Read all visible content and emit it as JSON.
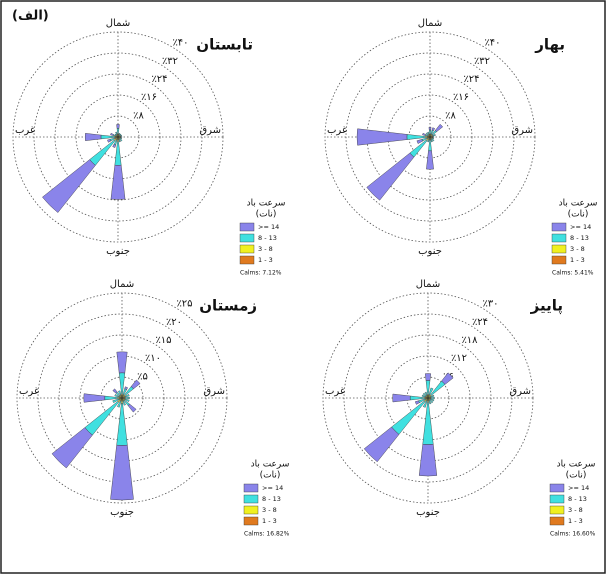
{
  "figure_label": "(الف)",
  "chart_data": [
    {
      "type": "wind_rose",
      "title": "تابستان",
      "x": [
        0,
        22.5,
        45,
        67.5,
        90,
        112.5,
        135,
        157.5,
        180,
        202.5,
        225,
        247.5,
        270,
        292.5,
        315,
        337.5
      ],
      "compass": [
        "شمال",
        "شرق",
        "جنوب",
        "غرب"
      ],
      "rlim": [
        0,
        40
      ],
      "rticks": [
        {
          "value": 8,
          "label": "٪۸"
        },
        {
          "value": 16,
          "label": "٪۱۶"
        },
        {
          "value": 24,
          "label": "٪۲۴"
        },
        {
          "value": 32,
          "label": "٪۳۲"
        },
        {
          "value": 40,
          "label": "٪۴۰"
        }
      ],
      "legend_title": [
        "سرعت باد",
        "(نات)"
      ],
      "calms": "Calms: 7.12%",
      "series": [
        {
          "name": "1 - 3",
          "color": "#e07a1f",
          "values": [
            0.3,
            0.2,
            0.2,
            0.2,
            0.2,
            0.2,
            0.2,
            0.2,
            0.3,
            0.2,
            0.3,
            0.2,
            0.3,
            0.2,
            0.2,
            0.2
          ]
        },
        {
          "name": "3 - 8",
          "color": "#f0f020",
          "values": [
            1,
            0.8,
            0.8,
            0.8,
            0.8,
            0.8,
            0.8,
            0.8,
            1.5,
            1,
            1.5,
            1,
            1.2,
            0.8,
            0.8,
            0.8
          ]
        },
        {
          "name": "8 - 13",
          "color": "#40e0e0",
          "values": [
            2,
            0.5,
            0.5,
            0.5,
            0.5,
            0.5,
            1,
            1,
            9,
            2,
            12,
            2,
            5,
            1,
            0.5,
            1
          ]
        },
        {
          "name": ">= 14",
          "color": "#8a84ea",
          "values": [
            1.5,
            0,
            0,
            0,
            0,
            0,
            0,
            0,
            13,
            1,
            23,
            1,
            6,
            1,
            0,
            0
          ]
        }
      ]
    },
    {
      "type": "wind_rose",
      "title": "بهار",
      "x": [
        0,
        22.5,
        45,
        67.5,
        90,
        112.5,
        135,
        157.5,
        180,
        202.5,
        225,
        247.5,
        270,
        292.5,
        315,
        337.5
      ],
      "compass": [
        "شمال",
        "شرق",
        "جنوب",
        "غرب"
      ],
      "rlim": [
        0,
        40
      ],
      "rticks": [
        {
          "value": 8,
          "label": "٪۸"
        },
        {
          "value": 16,
          "label": "٪۱۶"
        },
        {
          "value": 24,
          "label": "٪۲۴"
        },
        {
          "value": 32,
          "label": "٪۳۲"
        },
        {
          "value": 40,
          "label": "٪۴۰"
        }
      ],
      "legend_title": [
        "سرعت باد",
        "(نات)"
      ],
      "calms": "Calms: 5.41%",
      "series": [
        {
          "name": "1 - 3",
          "color": "#e07a1f",
          "values": [
            0.2,
            0.2,
            0.2,
            0.2,
            0.2,
            0.2,
            0.2,
            0.2,
            0.3,
            0.2,
            0.3,
            0.2,
            0.3,
            0.2,
            0.2,
            0.2
          ]
        },
        {
          "name": "3 - 8",
          "color": "#f0f020",
          "values": [
            1,
            1,
            1,
            1,
            0.8,
            0.8,
            0.8,
            0.8,
            1,
            0.8,
            1.5,
            1,
            1.5,
            0.8,
            0.8,
            0.8
          ]
        },
        {
          "name": "8 - 13",
          "color": "#40e0e0",
          "values": [
            1.5,
            1.5,
            2,
            1,
            0.5,
            0.5,
            1,
            1,
            4,
            1,
            8,
            2,
            7,
            1,
            1,
            1
          ]
        },
        {
          "name": ">= 14",
          "color": "#8a84ea",
          "values": [
            1,
            1,
            3,
            0,
            0,
            0,
            0,
            0,
            7,
            0,
            21,
            2,
            19,
            1,
            0,
            0
          ]
        }
      ]
    },
    {
      "type": "wind_rose",
      "title": "زمستان",
      "x": [
        0,
        22.5,
        45,
        67.5,
        90,
        112.5,
        135,
        157.5,
        180,
        202.5,
        225,
        247.5,
        270,
        292.5,
        315,
        337.5
      ],
      "compass": [
        "شمال",
        "شرق",
        "جنوب",
        "غرب"
      ],
      "rlim": [
        0,
        25
      ],
      "rticks": [
        {
          "value": 5,
          "label": "٪۵"
        },
        {
          "value": 10,
          "label": "٪۱۰"
        },
        {
          "value": 15,
          "label": "٪۱۵"
        },
        {
          "value": 20,
          "label": "٪۲۰"
        },
        {
          "value": 25,
          "label": "٪۲۵"
        }
      ],
      "legend_title": [
        "سرعت باد",
        "(نات)"
      ],
      "calms": "Calms: 16.82%",
      "series": [
        {
          "name": "1 - 3",
          "color": "#e07a1f",
          "values": [
            0.2,
            0.2,
            0.2,
            0.2,
            0.2,
            0.2,
            0.2,
            0.2,
            0.3,
            0.2,
            0.3,
            0.2,
            0.3,
            0.2,
            0.2,
            0.2
          ]
        },
        {
          "name": "3 - 8",
          "color": "#f0f020",
          "values": [
            0.8,
            0.6,
            0.8,
            0.6,
            0.6,
            0.6,
            0.6,
            0.6,
            1,
            0.6,
            1,
            0.6,
            0.8,
            0.6,
            0.6,
            0.6
          ]
        },
        {
          "name": "8 - 13",
          "color": "#40e0e0",
          "values": [
            5,
            1.5,
            2.5,
            1,
            1,
            1,
            1.5,
            1,
            10,
            1.5,
            10,
            1.5,
            3,
            1,
            1,
            1
          ]
        },
        {
          "name": ">= 14",
          "color": "#8a84ea",
          "values": [
            5,
            0.5,
            2,
            0,
            0,
            0,
            2,
            0,
            13,
            0,
            10,
            0,
            5,
            0,
            1,
            0
          ]
        }
      ]
    },
    {
      "type": "wind_rose",
      "title": "پاییز",
      "x": [
        0,
        22.5,
        45,
        67.5,
        90,
        112.5,
        135,
        157.5,
        180,
        202.5,
        225,
        247.5,
        270,
        292.5,
        315,
        337.5
      ],
      "compass": [
        "شمال",
        "شرق",
        "جنوب",
        "غرب"
      ],
      "rlim": [
        0,
        30
      ],
      "rticks": [
        {
          "value": 6,
          "label": "٪۶"
        },
        {
          "value": 12,
          "label": "٪۱۲"
        },
        {
          "value": 18,
          "label": "٪۱۸"
        },
        {
          "value": 24,
          "label": "٪۲۴"
        },
        {
          "value": 30,
          "label": "٪۳۰"
        }
      ],
      "legend_title": [
        "سرعت باد",
        "(نات)"
      ],
      "calms": "Calms: 16.60%",
      "series": [
        {
          "name": "1 - 3",
          "color": "#e07a1f",
          "values": [
            0.2,
            0.2,
            0.2,
            0.2,
            0.2,
            0.2,
            0.2,
            0.2,
            0.3,
            0.2,
            0.3,
            0.2,
            0.3,
            0.2,
            0.2,
            0.2
          ]
        },
        {
          "name": "3 - 8",
          "color": "#f0f020",
          "values": [
            0.8,
            0.8,
            1,
            0.6,
            0.6,
            0.6,
            0.6,
            0.6,
            1,
            0.6,
            1,
            0.6,
            0.8,
            0.6,
            0.6,
            0.6
          ]
        },
        {
          "name": "8 - 13",
          "color": "#40e0e0",
          "values": [
            4,
            2,
            5,
            1,
            1,
            1,
            1,
            1,
            12,
            2,
            12,
            2,
            4,
            1,
            1,
            1
          ]
        },
        {
          "name": ">= 14",
          "color": "#8a84ea",
          "values": [
            2,
            0,
            3,
            0,
            0,
            0,
            0,
            0,
            9,
            0,
            10,
            1,
            5,
            0,
            0,
            0
          ]
        }
      ]
    }
  ]
}
